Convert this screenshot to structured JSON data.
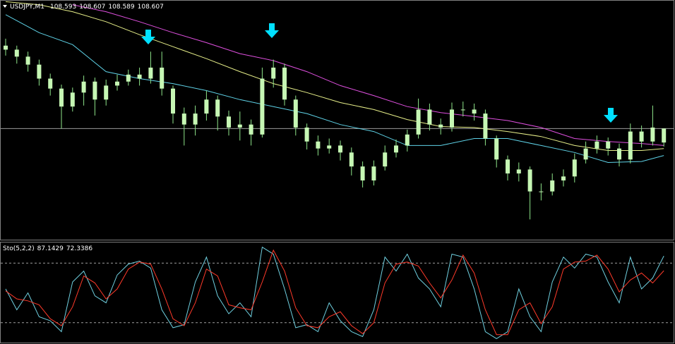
{
  "chart_data": [
    {
      "type": "candlestick",
      "title": "USDJPY,M1",
      "color": "#c6f7b4",
      "wick_color": "#8fe68a",
      "open": [
        108.69,
        108.686,
        108.679,
        108.671,
        108.657,
        108.647,
        108.629,
        108.643,
        108.654,
        108.636,
        108.65,
        108.654,
        108.661,
        108.657,
        108.668,
        108.647,
        108.622,
        108.611,
        108.622,
        108.636,
        108.619,
        108.608,
        108.611,
        108.601,
        108.657,
        108.668,
        108.636,
        108.608,
        108.594,
        108.587,
        108.59,
        108.583,
        108.569,
        108.555,
        108.569,
        108.583,
        108.59,
        108.601,
        108.626,
        108.611,
        108.608,
        108.626,
        108.626,
        108.622,
        108.597,
        108.576,
        108.562,
        108.566,
        108.544,
        108.544,
        108.555,
        108.559,
        108.576,
        108.587,
        108.594,
        108.587,
        108.576,
        108.604,
        108.594,
        108.593
      ],
      "high": [
        108.697,
        108.69,
        108.684,
        108.676,
        108.662,
        108.651,
        108.648,
        108.66,
        108.658,
        108.656,
        108.661,
        108.666,
        108.668,
        108.684,
        108.684,
        108.65,
        108.628,
        108.63,
        108.645,
        108.64,
        108.625,
        108.624,
        108.616,
        108.668,
        108.676,
        108.672,
        108.64,
        108.612,
        108.6,
        108.597,
        108.595,
        108.588,
        108.574,
        108.575,
        108.59,
        108.596,
        108.606,
        108.637,
        108.632,
        108.617,
        108.633,
        108.634,
        108.632,
        108.626,
        108.6,
        108.58,
        108.573,
        108.569,
        108.552,
        108.562,
        108.566,
        108.582,
        108.594,
        108.6,
        108.598,
        108.592,
        108.612,
        108.61,
        108.63,
        108.607
      ],
      "low": [
        108.68,
        108.672,
        108.664,
        108.65,
        108.64,
        108.607,
        108.624,
        108.63,
        108.62,
        108.63,
        108.645,
        108.65,
        108.65,
        108.652,
        108.64,
        108.612,
        108.59,
        108.6,
        108.615,
        108.605,
        108.6,
        108.595,
        108.59,
        108.598,
        108.648,
        108.63,
        108.6,
        108.586,
        108.58,
        108.582,
        108.575,
        108.56,
        108.548,
        108.55,
        108.565,
        108.578,
        108.584,
        108.597,
        108.605,
        108.601,
        108.604,
        108.619,
        108.615,
        108.59,
        108.568,
        108.555,
        108.554,
        108.516,
        108.535,
        108.54,
        108.549,
        108.553,
        108.572,
        108.582,
        108.58,
        108.569,
        108.572,
        108.588,
        108.59,
        108.589
      ],
      "close": [
        108.686,
        108.679,
        108.671,
        108.657,
        108.647,
        108.629,
        108.643,
        108.654,
        108.636,
        108.65,
        108.654,
        108.661,
        108.657,
        108.668,
        108.647,
        108.622,
        108.611,
        108.622,
        108.636,
        108.619,
        108.608,
        108.611,
        108.601,
        108.657,
        108.668,
        108.636,
        108.608,
        108.594,
        108.587,
        108.59,
        108.583,
        108.569,
        108.555,
        108.569,
        108.583,
        108.59,
        108.601,
        108.626,
        108.611,
        108.608,
        108.626,
        108.626,
        108.622,
        108.597,
        108.576,
        108.562,
        108.566,
        108.544,
        108.544,
        108.555,
        108.559,
        108.576,
        108.587,
        108.594,
        108.587,
        108.576,
        108.604,
        108.594,
        108.608,
        108.607
      ],
      "ylim": [
        108.495,
        108.735
      ],
      "ma_x": [
        0,
        3,
        6,
        9,
        12,
        15,
        18,
        21,
        24,
        27,
        30,
        33,
        36,
        39,
        42,
        45,
        48,
        51,
        54,
        57,
        59
      ],
      "overlays": [
        {
          "color": "#5fd3e8",
          "values": [
            108.721,
            108.703,
            108.691,
            108.664,
            108.657,
            108.652,
            108.645,
            108.636,
            108.629,
            108.622,
            108.611,
            108.604,
            108.59,
            108.59,
            108.597,
            108.597,
            108.59,
            108.583,
            108.573,
            108.574,
            108.58
          ]
        },
        {
          "color": "#e8f08a",
          "values": [
            108.734,
            108.731,
            108.724,
            108.714,
            108.701,
            108.689,
            108.677,
            108.664,
            108.652,
            108.643,
            108.633,
            108.626,
            108.616,
            108.609,
            108.608,
            108.604,
            108.599,
            108.59,
            108.585,
            108.585,
            108.587
          ]
        },
        {
          "color": "#e050e0",
          "values": [
            null,
            null,
            108.731,
            108.724,
            108.714,
            108.703,
            108.693,
            108.682,
            108.675,
            108.664,
            108.65,
            108.64,
            108.629,
            108.623,
            108.619,
            108.615,
            108.608,
            108.597,
            108.594,
            108.592,
            108.59
          ]
        }
      ]
    },
    {
      "type": "line",
      "title": "Sto(5,2,2)",
      "ylim": [
        0,
        100
      ],
      "levels": [
        20,
        80
      ],
      "series": [
        {
          "color": "#6fd0e0",
          "values": [
            54,
            33,
            50,
            26,
            22,
            11,
            61,
            72,
            47,
            40,
            68,
            79,
            82,
            75,
            33,
            15,
            18,
            61,
            86,
            47,
            29,
            40,
            26,
            96,
            89,
            54,
            15,
            18,
            11,
            40,
            22,
            11,
            6,
            33,
            86,
            72,
            89,
            65,
            54,
            36,
            89,
            86,
            54,
            11,
            4,
            11,
            54,
            26,
            11,
            61,
            86,
            75,
            89,
            86,
            61,
            40,
            86,
            54,
            65,
            87.1429
          ]
        },
        {
          "color": "#ff3a2a",
          "values": [
            52,
            44,
            42,
            38,
            24,
            17,
            36,
            67,
            60,
            44,
            54,
            74,
            81,
            79,
            54,
            24,
            17,
            40,
            74,
            67,
            38,
            35,
            33,
            61,
            93,
            72,
            35,
            17,
            15,
            26,
            31,
            17,
            9,
            20,
            60,
            79,
            81,
            77,
            60,
            45,
            63,
            88,
            70,
            33,
            8,
            8,
            33,
            40,
            19,
            36,
            74,
            81,
            82,
            88,
            74,
            51,
            63,
            70,
            60,
            72.3386
          ]
        }
      ]
    }
  ]
}
